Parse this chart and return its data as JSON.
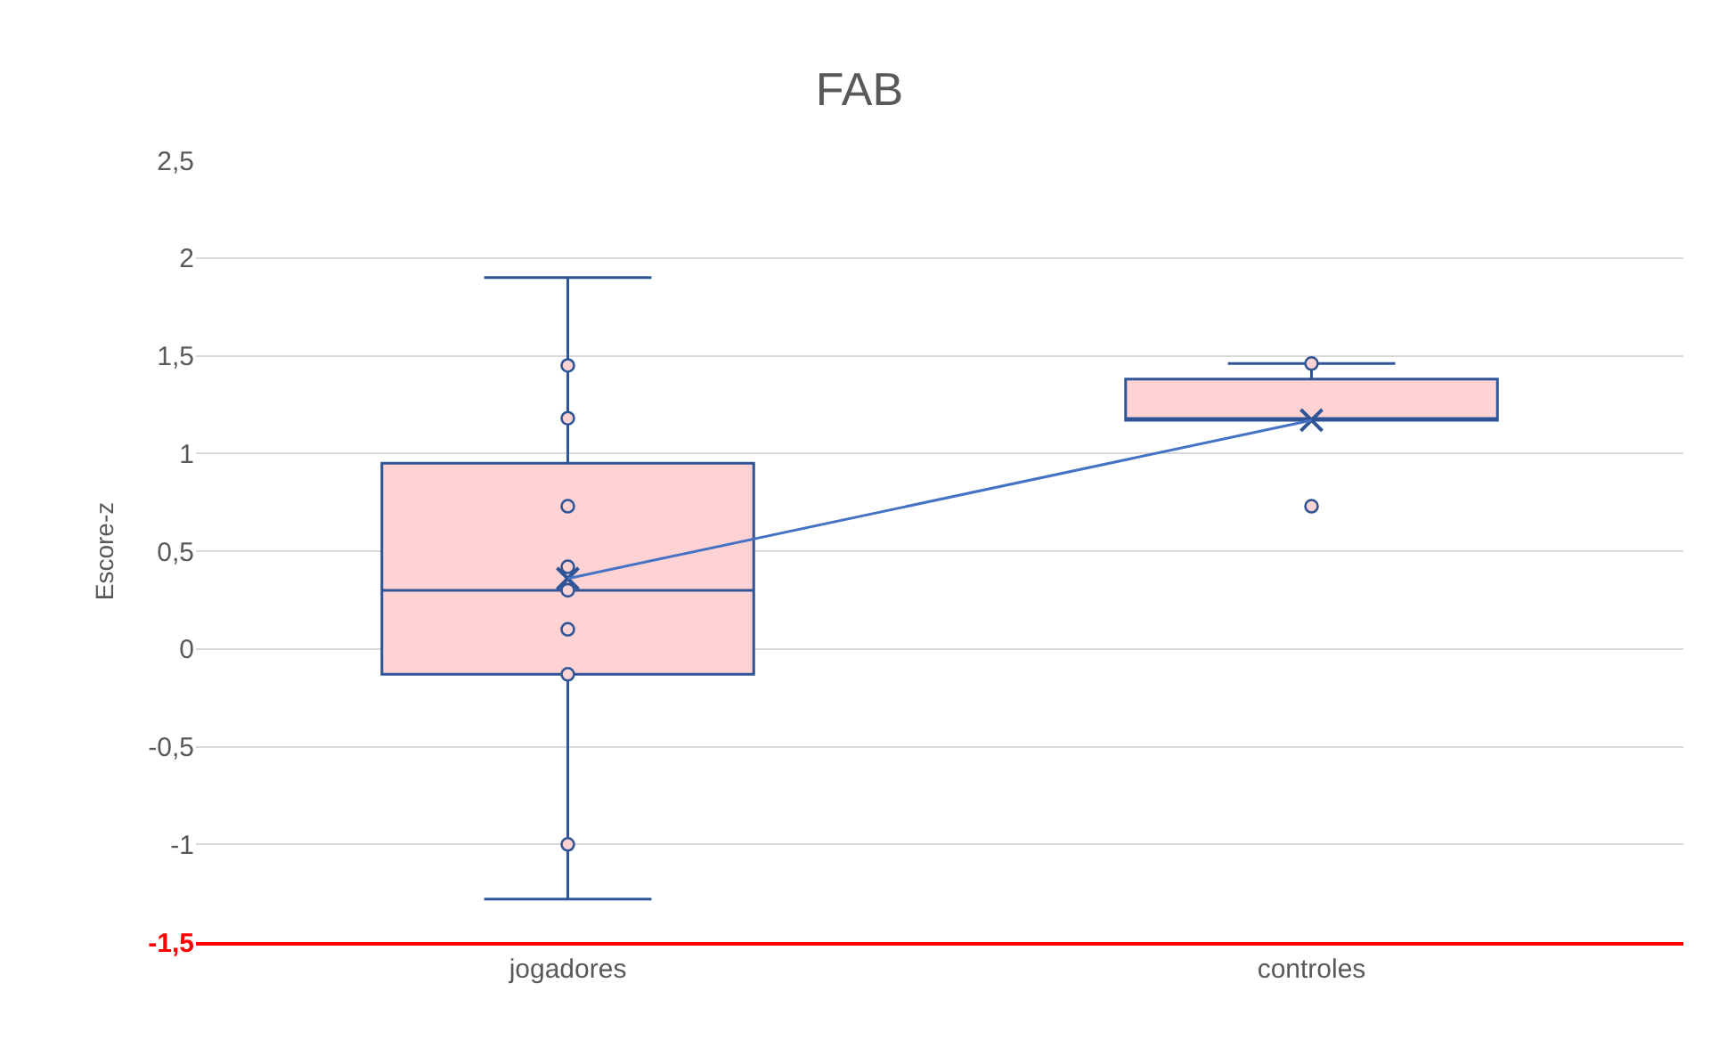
{
  "chart_data": {
    "type": "box",
    "title": "FAB",
    "ylabel": "Escore-z",
    "categories": [
      "jogadores",
      "controles"
    ],
    "series": [
      {
        "color": "#2f5597",
        "boxes": [
          {
            "low": -1.28,
            "q1": -0.13,
            "median": 0.3,
            "q3": 0.95,
            "high": 1.9,
            "mean": 0.36,
            "outliers": [
              1.45,
              1.18,
              0.73,
              0.42,
              0.3,
              0.1,
              -0.13,
              -1.0
            ]
          },
          {
            "low": 1.17,
            "q1": 1.17,
            "median": 1.17,
            "q3": 1.38,
            "high": 1.46,
            "mean": 1.17,
            "outliers": [
              1.46,
              0.73
            ]
          }
        ]
      },
      {
        "type": "line",
        "color": "#4472c4",
        "values": [
          0.36,
          1.17
        ],
        "marker": "none"
      }
    ],
    "ylim": [
      -1.5,
      2.5
    ],
    "yticks": [
      {
        "value": -1.5,
        "label": "-1,5"
      },
      {
        "value": -1,
        "label": "-1"
      },
      {
        "value": -0.5,
        "label": "-0,5"
      },
      {
        "value": 0,
        "label": "0"
      },
      {
        "value": 0.5,
        "label": "0,5"
      },
      {
        "value": 1,
        "label": "1"
      },
      {
        "value": 1.5,
        "label": "1,5"
      },
      {
        "value": 2,
        "label": "2"
      },
      {
        "value": 2.5,
        "label": "2,5"
      }
    ],
    "grid": "y"
  }
}
